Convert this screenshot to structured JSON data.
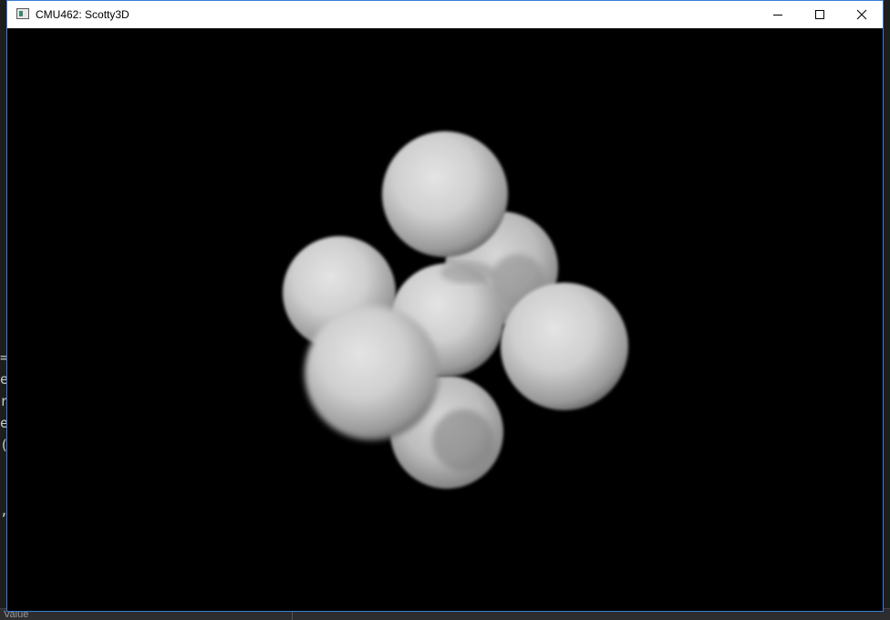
{
  "window": {
    "title": "CMU462: Scotty3D",
    "icon": "app-window-icon"
  },
  "controls": {
    "minimize": "minimize-icon",
    "maximize": "maximize-icon",
    "close": "close-icon"
  },
  "background": {
    "gutter_chars": [
      "=",
      "e",
      "r",
      "e",
      "(",
      "",
      "",
      ","
    ],
    "status_label": "Value"
  },
  "colors": {
    "titlebar": "#ffffff",
    "window_border": "#3b7dd8",
    "viewport": "#000000",
    "sphere_light": "#e6e6e6",
    "sphere_shadow": "#3a3a3a"
  }
}
